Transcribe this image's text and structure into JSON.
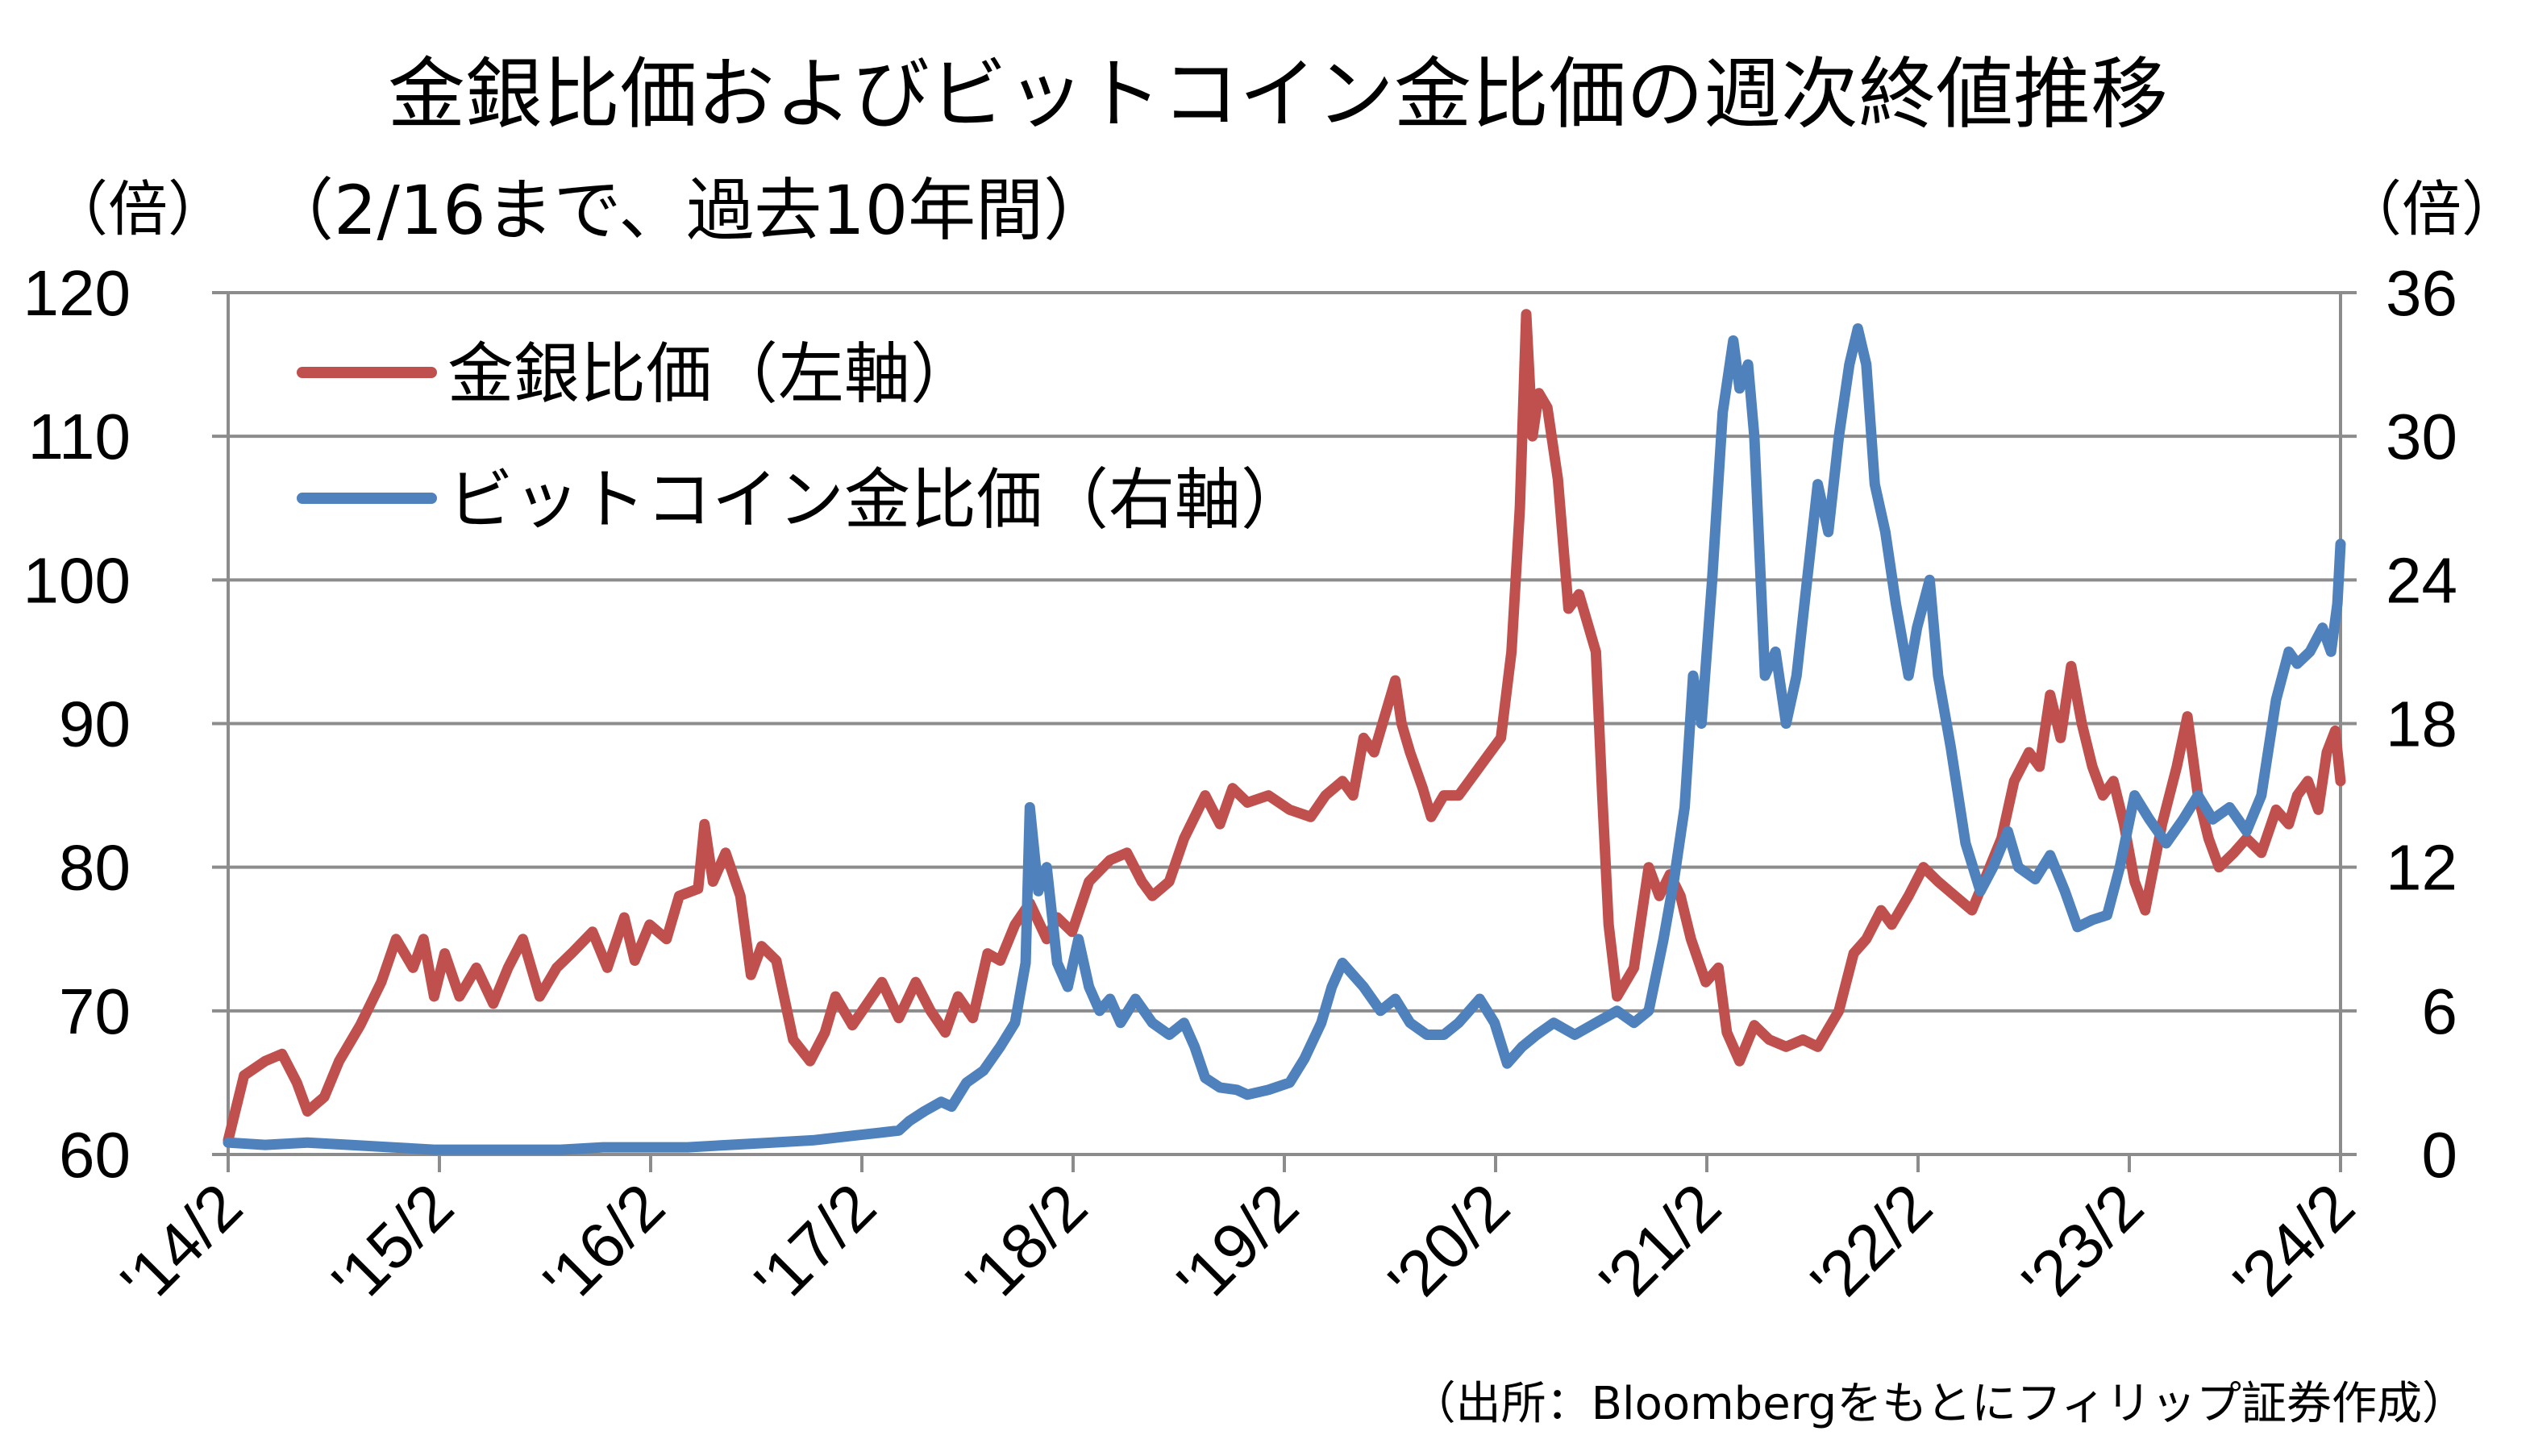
{
  "chart_data": {
    "type": "line",
    "title": "金銀比価およびビットコイン金比価の週次終値推移",
    "subtitle": "（2/16まで、過去10年間）",
    "y_left_unit": "（倍）",
    "y_right_unit": "（倍）",
    "source": "（出所：Bloombergをもとにフィリップ証券作成）",
    "x_start": 2014.125,
    "x_end": 2024.125,
    "x_ticks": [
      {
        "label": "'14/2",
        "x": 2014.125
      },
      {
        "label": "'15/2",
        "x": 2015.125
      },
      {
        "label": "'16/2",
        "x": 2016.125
      },
      {
        "label": "'17/2",
        "x": 2017.125
      },
      {
        "label": "'18/2",
        "x": 2018.125
      },
      {
        "label": "'19/2",
        "x": 2019.125
      },
      {
        "label": "'20/2",
        "x": 2020.125
      },
      {
        "label": "'21/2",
        "x": 2021.125
      },
      {
        "label": "'22/2",
        "x": 2022.125
      },
      {
        "label": "'23/2",
        "x": 2023.125
      },
      {
        "label": "'24/2",
        "x": 2024.125
      }
    ],
    "y_left": {
      "min": 60,
      "max": 120,
      "ticks": [
        "60",
        "70",
        "80",
        "90",
        "100",
        "110",
        "120"
      ]
    },
    "y_right": {
      "min": 0,
      "max": 36,
      "ticks": [
        "0",
        "6",
        "12",
        "18",
        "24",
        "30",
        "36"
      ]
    },
    "grid": "horizontal",
    "legend_position": "top-left",
    "series": [
      {
        "name": "金銀比価（左軸）",
        "axis": "left",
        "color": "#c0504d",
        "points": [
          [
            2014.125,
            61
          ],
          [
            2014.2,
            65.5
          ],
          [
            2014.3,
            66.5
          ],
          [
            2014.38,
            67
          ],
          [
            2014.45,
            65
          ],
          [
            2014.5,
            63
          ],
          [
            2014.58,
            64
          ],
          [
            2014.65,
            66.5
          ],
          [
            2014.75,
            69
          ],
          [
            2014.85,
            72
          ],
          [
            2014.92,
            75
          ],
          [
            2015.0,
            73
          ],
          [
            2015.05,
            75
          ],
          [
            2015.1,
            71
          ],
          [
            2015.15,
            74
          ],
          [
            2015.22,
            71
          ],
          [
            2015.3,
            73
          ],
          [
            2015.38,
            70.5
          ],
          [
            2015.45,
            73
          ],
          [
            2015.52,
            75
          ],
          [
            2015.6,
            71
          ],
          [
            2015.68,
            73
          ],
          [
            2015.75,
            74
          ],
          [
            2015.85,
            75.5
          ],
          [
            2015.92,
            73
          ],
          [
            2016.0,
            76.5
          ],
          [
            2016.05,
            73.5
          ],
          [
            2016.12,
            76
          ],
          [
            2016.2,
            75
          ],
          [
            2016.26,
            78
          ],
          [
            2016.35,
            78.5
          ],
          [
            2016.38,
            83
          ],
          [
            2016.42,
            79
          ],
          [
            2016.48,
            81
          ],
          [
            2016.55,
            78
          ],
          [
            2016.6,
            72.5
          ],
          [
            2016.65,
            74.5
          ],
          [
            2016.72,
            73.5
          ],
          [
            2016.8,
            68
          ],
          [
            2016.88,
            66.5
          ],
          [
            2016.95,
            68.5
          ],
          [
            2017.0,
            71
          ],
          [
            2017.08,
            69
          ],
          [
            2017.15,
            70.5
          ],
          [
            2017.22,
            72
          ],
          [
            2017.3,
            69.5
          ],
          [
            2017.38,
            72
          ],
          [
            2017.45,
            70
          ],
          [
            2017.52,
            68.5
          ],
          [
            2017.58,
            71
          ],
          [
            2017.65,
            69.5
          ],
          [
            2017.72,
            74
          ],
          [
            2017.78,
            73.5
          ],
          [
            2017.85,
            76
          ],
          [
            2017.92,
            77.5
          ],
          [
            2018.0,
            75
          ],
          [
            2018.05,
            76.5
          ],
          [
            2018.12,
            75.5
          ],
          [
            2018.2,
            79
          ],
          [
            2018.3,
            80.5
          ],
          [
            2018.38,
            81
          ],
          [
            2018.45,
            79
          ],
          [
            2018.5,
            78
          ],
          [
            2018.58,
            79
          ],
          [
            2018.65,
            82
          ],
          [
            2018.75,
            85
          ],
          [
            2018.82,
            83
          ],
          [
            2018.88,
            85.5
          ],
          [
            2018.95,
            84.5
          ],
          [
            2019.05,
            85
          ],
          [
            2019.15,
            84
          ],
          [
            2019.25,
            83.5
          ],
          [
            2019.32,
            85
          ],
          [
            2019.4,
            86
          ],
          [
            2019.45,
            85
          ],
          [
            2019.5,
            89
          ],
          [
            2019.55,
            88
          ],
          [
            2019.6,
            90.5
          ],
          [
            2019.65,
            93
          ],
          [
            2019.68,
            90
          ],
          [
            2019.72,
            88
          ],
          [
            2019.78,
            85.5
          ],
          [
            2019.82,
            83.5
          ],
          [
            2019.88,
            85
          ],
          [
            2019.95,
            85
          ],
          [
            2020.0,
            86
          ],
          [
            2020.05,
            87
          ],
          [
            2020.1,
            88
          ],
          [
            2020.15,
            89
          ],
          [
            2020.2,
            95
          ],
          [
            2020.24,
            105
          ],
          [
            2020.27,
            118.5
          ],
          [
            2020.3,
            110
          ],
          [
            2020.33,
            113
          ],
          [
            2020.37,
            112
          ],
          [
            2020.42,
            107
          ],
          [
            2020.47,
            98
          ],
          [
            2020.52,
            99
          ],
          [
            2020.56,
            97
          ],
          [
            2020.6,
            95
          ],
          [
            2020.63,
            85
          ],
          [
            2020.66,
            76
          ],
          [
            2020.7,
            71
          ],
          [
            2020.78,
            73
          ],
          [
            2020.85,
            80
          ],
          [
            2020.9,
            78
          ],
          [
            2020.95,
            79.5
          ],
          [
            2021.0,
            78
          ],
          [
            2021.05,
            75
          ],
          [
            2021.12,
            72
          ],
          [
            2021.18,
            73
          ],
          [
            2021.22,
            68.5
          ],
          [
            2021.28,
            66.5
          ],
          [
            2021.35,
            69
          ],
          [
            2021.42,
            68
          ],
          [
            2021.5,
            67.5
          ],
          [
            2021.58,
            68
          ],
          [
            2021.65,
            67.5
          ],
          [
            2021.75,
            70
          ],
          [
            2021.82,
            74
          ],
          [
            2021.88,
            75
          ],
          [
            2021.95,
            77
          ],
          [
            2022.0,
            76
          ],
          [
            2022.08,
            78
          ],
          [
            2022.15,
            80
          ],
          [
            2022.22,
            79
          ],
          [
            2022.3,
            78
          ],
          [
            2022.38,
            77
          ],
          [
            2022.45,
            79.5
          ],
          [
            2022.52,
            82
          ],
          [
            2022.58,
            86
          ],
          [
            2022.65,
            88
          ],
          [
            2022.7,
            87
          ],
          [
            2022.75,
            92
          ],
          [
            2022.8,
            89
          ],
          [
            2022.85,
            94
          ],
          [
            2022.9,
            90
          ],
          [
            2022.95,
            87
          ],
          [
            2023.0,
            85
          ],
          [
            2023.05,
            86
          ],
          [
            2023.1,
            83
          ],
          [
            2023.15,
            79
          ],
          [
            2023.2,
            77
          ],
          [
            2023.28,
            83
          ],
          [
            2023.35,
            87
          ],
          [
            2023.4,
            90.5
          ],
          [
            2023.45,
            85
          ],
          [
            2023.5,
            82
          ],
          [
            2023.55,
            80
          ],
          [
            2023.62,
            81
          ],
          [
            2023.68,
            82
          ],
          [
            2023.75,
            81
          ],
          [
            2023.82,
            84
          ],
          [
            2023.88,
            83
          ],
          [
            2023.92,
            85
          ],
          [
            2023.97,
            86
          ],
          [
            2024.02,
            84
          ],
          [
            2024.06,
            88
          ],
          [
            2024.1,
            89.5
          ],
          [
            2024.125,
            86
          ]
        ]
      },
      {
        "name": "ビットコイン金比価（右軸）",
        "axis": "right",
        "color": "#4f81bd",
        "points": [
          [
            2014.125,
            0.5
          ],
          [
            2014.3,
            0.4
          ],
          [
            2014.5,
            0.5
          ],
          [
            2014.7,
            0.4
          ],
          [
            2014.9,
            0.3
          ],
          [
            2015.1,
            0.2
          ],
          [
            2015.3,
            0.2
          ],
          [
            2015.5,
            0.2
          ],
          [
            2015.7,
            0.2
          ],
          [
            2015.9,
            0.3
          ],
          [
            2016.1,
            0.3
          ],
          [
            2016.3,
            0.3
          ],
          [
            2016.5,
            0.4
          ],
          [
            2016.7,
            0.5
          ],
          [
            2016.9,
            0.6
          ],
          [
            2017.0,
            0.7
          ],
          [
            2017.1,
            0.8
          ],
          [
            2017.2,
            0.9
          ],
          [
            2017.3,
            1.0
          ],
          [
            2017.35,
            1.4
          ],
          [
            2017.42,
            1.8
          ],
          [
            2017.5,
            2.2
          ],
          [
            2017.55,
            2.0
          ],
          [
            2017.62,
            3.0
          ],
          [
            2017.7,
            3.5
          ],
          [
            2017.78,
            4.5
          ],
          [
            2017.85,
            5.5
          ],
          [
            2017.9,
            8.0
          ],
          [
            2017.92,
            14.5
          ],
          [
            2017.96,
            11
          ],
          [
            2018.0,
            12
          ],
          [
            2018.05,
            8
          ],
          [
            2018.1,
            7
          ],
          [
            2018.15,
            9
          ],
          [
            2018.2,
            7
          ],
          [
            2018.25,
            6
          ],
          [
            2018.3,
            6.5
          ],
          [
            2018.35,
            5.5
          ],
          [
            2018.42,
            6.5
          ],
          [
            2018.5,
            5.5
          ],
          [
            2018.58,
            5.0
          ],
          [
            2018.65,
            5.5
          ],
          [
            2018.7,
            4.5
          ],
          [
            2018.75,
            3.2
          ],
          [
            2018.82,
            2.8
          ],
          [
            2018.9,
            2.7
          ],
          [
            2018.95,
            2.5
          ],
          [
            2019.05,
            2.7
          ],
          [
            2019.15,
            3.0
          ],
          [
            2019.22,
            4.0
          ],
          [
            2019.3,
            5.5
          ],
          [
            2019.35,
            7.0
          ],
          [
            2019.4,
            8.0
          ],
          [
            2019.45,
            7.5
          ],
          [
            2019.5,
            7.0
          ],
          [
            2019.58,
            6.0
          ],
          [
            2019.65,
            6.5
          ],
          [
            2019.72,
            5.5
          ],
          [
            2019.8,
            5.0
          ],
          [
            2019.88,
            5.0
          ],
          [
            2019.95,
            5.5
          ],
          [
            2020.0,
            6.0
          ],
          [
            2020.05,
            6.5
          ],
          [
            2020.12,
            5.5
          ],
          [
            2020.18,
            3.8
          ],
          [
            2020.25,
            4.5
          ],
          [
            2020.32,
            5.0
          ],
          [
            2020.4,
            5.5
          ],
          [
            2020.5,
            5.0
          ],
          [
            2020.6,
            5.5
          ],
          [
            2020.7,
            6.0
          ],
          [
            2020.78,
            5.5
          ],
          [
            2020.85,
            6.0
          ],
          [
            2020.92,
            9.0
          ],
          [
            2020.97,
            11.5
          ],
          [
            2021.02,
            14.5
          ],
          [
            2021.06,
            20
          ],
          [
            2021.1,
            18
          ],
          [
            2021.15,
            24
          ],
          [
            2021.2,
            31
          ],
          [
            2021.25,
            34
          ],
          [
            2021.28,
            32
          ],
          [
            2021.32,
            33
          ],
          [
            2021.35,
            30
          ],
          [
            2021.4,
            20
          ],
          [
            2021.45,
            21
          ],
          [
            2021.5,
            18
          ],
          [
            2021.55,
            20
          ],
          [
            2021.6,
            24
          ],
          [
            2021.65,
            28
          ],
          [
            2021.7,
            26
          ],
          [
            2021.75,
            30
          ],
          [
            2021.8,
            33
          ],
          [
            2021.84,
            34.5
          ],
          [
            2021.88,
            33
          ],
          [
            2021.92,
            28
          ],
          [
            2021.97,
            26
          ],
          [
            2022.02,
            23
          ],
          [
            2022.08,
            20
          ],
          [
            2022.12,
            22
          ],
          [
            2022.18,
            24
          ],
          [
            2022.22,
            20
          ],
          [
            2022.28,
            17
          ],
          [
            2022.35,
            13
          ],
          [
            2022.42,
            11
          ],
          [
            2022.48,
            12
          ],
          [
            2022.55,
            13.5
          ],
          [
            2022.6,
            12
          ],
          [
            2022.68,
            11.5
          ],
          [
            2022.75,
            12.5
          ],
          [
            2022.82,
            11
          ],
          [
            2022.88,
            9.5
          ],
          [
            2022.95,
            9.8
          ],
          [
            2023.02,
            10
          ],
          [
            2023.08,
            12
          ],
          [
            2023.15,
            15
          ],
          [
            2023.22,
            14
          ],
          [
            2023.3,
            13
          ],
          [
            2023.38,
            14
          ],
          [
            2023.45,
            15
          ],
          [
            2023.52,
            14
          ],
          [
            2023.6,
            14.5
          ],
          [
            2023.68,
            13.5
          ],
          [
            2023.75,
            15
          ],
          [
            2023.82,
            19
          ],
          [
            2023.88,
            21
          ],
          [
            2023.92,
            20.5
          ],
          [
            2023.98,
            21
          ],
          [
            2024.04,
            22
          ],
          [
            2024.08,
            21
          ],
          [
            2024.11,
            23
          ],
          [
            2024.125,
            25.5
          ]
        ]
      }
    ]
  }
}
